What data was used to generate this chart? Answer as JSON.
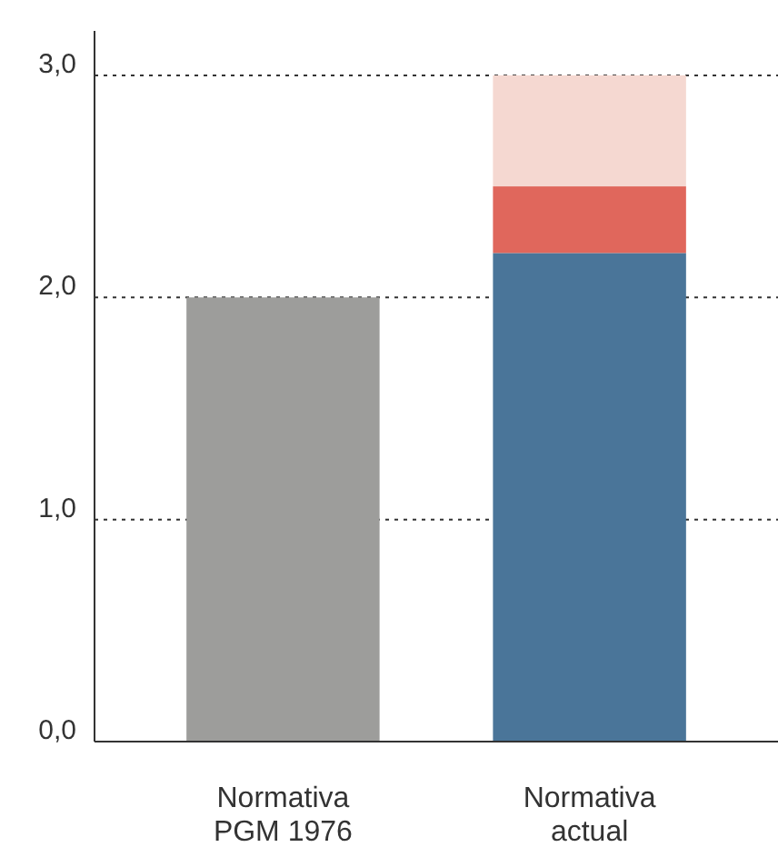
{
  "chart_data": {
    "type": "bar",
    "stacked": true,
    "categories": [
      "Normativa PGM 1976",
      "Normativa actual"
    ],
    "series": [
      {
        "colors": [
          "#9d9d9b",
          "#4a7599"
        ],
        "values": [
          2.0,
          2.2
        ]
      },
      {
        "color": "#e0675c",
        "values": [
          null,
          0.3
        ]
      },
      {
        "color": "#f5d8d1",
        "values": [
          null,
          0.5
        ]
      }
    ],
    "ylim": [
      0,
      3.2
    ],
    "yticks": [
      {
        "value": 0,
        "label": "0,0"
      },
      {
        "value": 1,
        "label": "1,0"
      },
      {
        "value": 2,
        "label": "2,0"
      },
      {
        "value": 3,
        "label": "3,0"
      }
    ],
    "grid": "y",
    "line_style": "dotted"
  }
}
